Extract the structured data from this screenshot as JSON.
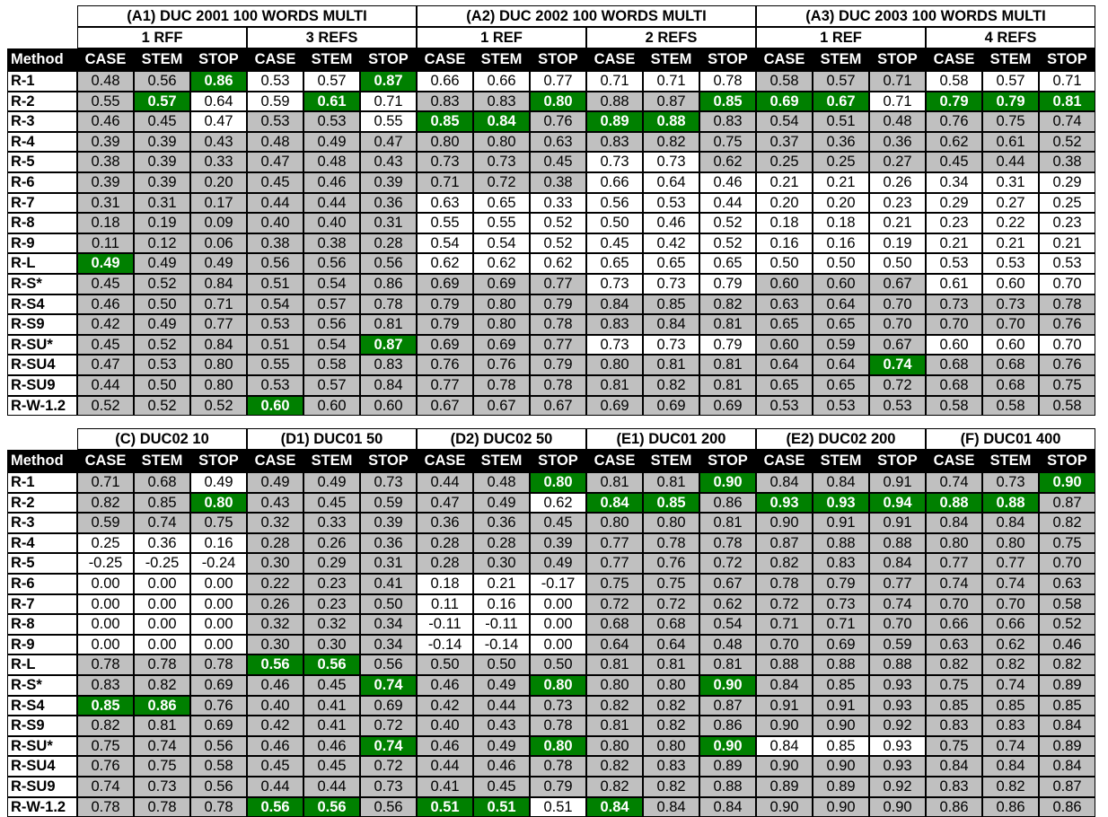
{
  "method_label": "Method",
  "col_labels": [
    "CASE",
    "STEM",
    "STOP"
  ],
  "methods": [
    "R-1",
    "R-2",
    "R-3",
    "R-4",
    "R-5",
    "R-6",
    "R-7",
    "R-8",
    "R-9",
    "R-L",
    "R-S*",
    "R-S4",
    "R-S9",
    "R-SU*",
    "R-SU4",
    "R-SU9",
    "R-W-1.2"
  ],
  "colors": {
    "gray": "#c0c0c0",
    "white": "#ffffff",
    "highlight": "#008000",
    "header_bg": "#000000"
  },
  "top_table": {
    "groups": [
      {
        "label": "(A1) DUC 2001 100 WORDS MULTI",
        "subs": [
          "1 RFF",
          "3 REFS"
        ]
      },
      {
        "label": "(A2) DUC 2002 100 WORDS MULTI",
        "subs": [
          "1 REF",
          "2 REFS"
        ]
      },
      {
        "label": "(A3) DUC 2003 100 WORDS MULTI",
        "subs": [
          "1 REF",
          "4 REFS"
        ]
      }
    ],
    "rows": [
      [
        "0.48",
        "0.56",
        "0.86",
        "0.53",
        "0.57",
        "0.87",
        "0.66",
        "0.66",
        "0.77",
        "0.71",
        "0.71",
        "0.78",
        "0.58",
        "0.57",
        "0.71",
        "0.58",
        "0.57",
        "0.71"
      ],
      [
        "0.55",
        "0.57",
        "0.64",
        "0.59",
        "0.61",
        "0.71",
        "0.83",
        "0.83",
        "0.80",
        "0.88",
        "0.87",
        "0.85",
        "0.69",
        "0.67",
        "0.71",
        "0.79",
        "0.79",
        "0.81"
      ],
      [
        "0.46",
        "0.45",
        "0.47",
        "0.53",
        "0.53",
        "0.55",
        "0.85",
        "0.84",
        "0.76",
        "0.89",
        "0.88",
        "0.83",
        "0.54",
        "0.51",
        "0.48",
        "0.76",
        "0.75",
        "0.74"
      ],
      [
        "0.39",
        "0.39",
        "0.43",
        "0.48",
        "0.49",
        "0.47",
        "0.80",
        "0.80",
        "0.63",
        "0.83",
        "0.82",
        "0.75",
        "0.37",
        "0.36",
        "0.36",
        "0.62",
        "0.61",
        "0.52"
      ],
      [
        "0.38",
        "0.39",
        "0.33",
        "0.47",
        "0.48",
        "0.43",
        "0.73",
        "0.73",
        "0.45",
        "0.73",
        "0.73",
        "0.62",
        "0.25",
        "0.25",
        "0.27",
        "0.45",
        "0.44",
        "0.38"
      ],
      [
        "0.39",
        "0.39",
        "0.20",
        "0.45",
        "0.46",
        "0.39",
        "0.71",
        "0.72",
        "0.38",
        "0.66",
        "0.64",
        "0.46",
        "0.21",
        "0.21",
        "0.26",
        "0.34",
        "0.31",
        "0.29"
      ],
      [
        "0.31",
        "0.31",
        "0.17",
        "0.44",
        "0.44",
        "0.36",
        "0.63",
        "0.65",
        "0.33",
        "0.56",
        "0.53",
        "0.44",
        "0.20",
        "0.20",
        "0.23",
        "0.29",
        "0.27",
        "0.25"
      ],
      [
        "0.18",
        "0.19",
        "0.09",
        "0.40",
        "0.40",
        "0.31",
        "0.55",
        "0.55",
        "0.52",
        "0.50",
        "0.46",
        "0.52",
        "0.18",
        "0.18",
        "0.21",
        "0.23",
        "0.22",
        "0.23"
      ],
      [
        "0.11",
        "0.12",
        "0.06",
        "0.38",
        "0.38",
        "0.28",
        "0.54",
        "0.54",
        "0.52",
        "0.45",
        "0.42",
        "0.52",
        "0.16",
        "0.16",
        "0.19",
        "0.21",
        "0.21",
        "0.21"
      ],
      [
        "0.49",
        "0.49",
        "0.49",
        "0.56",
        "0.56",
        "0.56",
        "0.62",
        "0.62",
        "0.62",
        "0.65",
        "0.65",
        "0.65",
        "0.50",
        "0.50",
        "0.50",
        "0.53",
        "0.53",
        "0.53"
      ],
      [
        "0.45",
        "0.52",
        "0.84",
        "0.51",
        "0.54",
        "0.86",
        "0.69",
        "0.69",
        "0.77",
        "0.73",
        "0.73",
        "0.79",
        "0.60",
        "0.60",
        "0.67",
        "0.61",
        "0.60",
        "0.70"
      ],
      [
        "0.46",
        "0.50",
        "0.71",
        "0.54",
        "0.57",
        "0.78",
        "0.79",
        "0.80",
        "0.79",
        "0.84",
        "0.85",
        "0.82",
        "0.63",
        "0.64",
        "0.70",
        "0.73",
        "0.73",
        "0.78"
      ],
      [
        "0.42",
        "0.49",
        "0.77",
        "0.53",
        "0.56",
        "0.81",
        "0.79",
        "0.80",
        "0.78",
        "0.83",
        "0.84",
        "0.81",
        "0.65",
        "0.65",
        "0.70",
        "0.70",
        "0.70",
        "0.76"
      ],
      [
        "0.45",
        "0.52",
        "0.84",
        "0.51",
        "0.54",
        "0.87",
        "0.69",
        "0.69",
        "0.77",
        "0.73",
        "0.73",
        "0.79",
        "0.60",
        "0.59",
        "0.67",
        "0.60",
        "0.60",
        "0.70"
      ],
      [
        "0.47",
        "0.53",
        "0.80",
        "0.55",
        "0.58",
        "0.83",
        "0.76",
        "0.76",
        "0.79",
        "0.80",
        "0.81",
        "0.81",
        "0.64",
        "0.64",
        "0.74",
        "0.68",
        "0.68",
        "0.76"
      ],
      [
        "0.44",
        "0.50",
        "0.80",
        "0.53",
        "0.57",
        "0.84",
        "0.77",
        "0.78",
        "0.78",
        "0.81",
        "0.82",
        "0.81",
        "0.65",
        "0.65",
        "0.72",
        "0.68",
        "0.68",
        "0.75"
      ],
      [
        "0.52",
        "0.52",
        "0.52",
        "0.60",
        "0.60",
        "0.60",
        "0.67",
        "0.67",
        "0.67",
        "0.69",
        "0.69",
        "0.69",
        "0.53",
        "0.53",
        "0.53",
        "0.58",
        "0.58",
        "0.58"
      ]
    ],
    "shade": [
      "GGHWWHWWWWWWGGGWWW",
      "GHWWHWGGHGGHHHWHHH",
      "GGWGGWHHGHHGGGGGGG",
      "GGGGGGGGGGGGGGGGGG",
      "GGGGGGGGGWWGGGGGGG",
      "GGGGGGGGGWWWWWWWWW",
      "GGGGGGWWWWWWWWWWWW",
      "GGGGGGWWWWWWWWWWWW",
      "GGGGGGWWWWWWWWWWWW",
      "HGGGGGWWWWWWWWWWWW",
      "GGGGGGGGGWWWGGGWWW",
      "GGGGGGGGGGGGGGGGGG",
      "GGGGGGGGGGGGGGGGGG",
      "GGGGGHGGGWWWGGGWWW",
      "GGGGGGGGGGGGGGHGGG",
      "GGGGGGGGGGGGGGGGGG",
      "GGGHGGGGGGGGGGGGGG"
    ]
  },
  "bottom_table": {
    "groups": [
      {
        "label": "(C) DUC02 10"
      },
      {
        "label": "(D1) DUC01 50"
      },
      {
        "label": "(D2) DUC02 50"
      },
      {
        "label": "(E1) DUC01 200"
      },
      {
        "label": "(E2) DUC02 200"
      },
      {
        "label": "(F) DUC01 400"
      }
    ],
    "rows": [
      [
        "0.71",
        "0.68",
        "0.49",
        "0.49",
        "0.49",
        "0.73",
        "0.44",
        "0.48",
        "0.80",
        "0.81",
        "0.81",
        "0.90",
        "0.84",
        "0.84",
        "0.91",
        "0.74",
        "0.73",
        "0.90"
      ],
      [
        "0.82",
        "0.85",
        "0.80",
        "0.43",
        "0.45",
        "0.59",
        "0.47",
        "0.49",
        "0.62",
        "0.84",
        "0.85",
        "0.86",
        "0.93",
        "0.93",
        "0.94",
        "0.88",
        "0.88",
        "0.87"
      ],
      [
        "0.59",
        "0.74",
        "0.75",
        "0.32",
        "0.33",
        "0.39",
        "0.36",
        "0.36",
        "0.45",
        "0.80",
        "0.80",
        "0.81",
        "0.90",
        "0.91",
        "0.91",
        "0.84",
        "0.84",
        "0.82"
      ],
      [
        "0.25",
        "0.36",
        "0.16",
        "0.28",
        "0.26",
        "0.36",
        "0.28",
        "0.28",
        "0.39",
        "0.77",
        "0.78",
        "0.78",
        "0.87",
        "0.88",
        "0.88",
        "0.80",
        "0.80",
        "0.75"
      ],
      [
        "-0.25",
        "-0.25",
        "-0.24",
        "0.30",
        "0.29",
        "0.31",
        "0.28",
        "0.30",
        "0.49",
        "0.77",
        "0.76",
        "0.72",
        "0.82",
        "0.83",
        "0.84",
        "0.77",
        "0.77",
        "0.70"
      ],
      [
        "0.00",
        "0.00",
        "0.00",
        "0.22",
        "0.23",
        "0.41",
        "0.18",
        "0.21",
        "-0.17",
        "0.75",
        "0.75",
        "0.67",
        "0.78",
        "0.79",
        "0.77",
        "0.74",
        "0.74",
        "0.63"
      ],
      [
        "0.00",
        "0.00",
        "0.00",
        "0.26",
        "0.23",
        "0.50",
        "0.11",
        "0.16",
        "0.00",
        "0.72",
        "0.72",
        "0.62",
        "0.72",
        "0.73",
        "0.74",
        "0.70",
        "0.70",
        "0.58"
      ],
      [
        "0.00",
        "0.00",
        "0.00",
        "0.32",
        "0.32",
        "0.34",
        "-0.11",
        "-0.11",
        "0.00",
        "0.68",
        "0.68",
        "0.54",
        "0.71",
        "0.71",
        "0.70",
        "0.66",
        "0.66",
        "0.52"
      ],
      [
        "0.00",
        "0.00",
        "0.00",
        "0.30",
        "0.30",
        "0.34",
        "-0.14",
        "-0.14",
        "0.00",
        "0.64",
        "0.64",
        "0.48",
        "0.70",
        "0.69",
        "0.59",
        "0.63",
        "0.62",
        "0.46"
      ],
      [
        "0.78",
        "0.78",
        "0.78",
        "0.56",
        "0.56",
        "0.56",
        "0.50",
        "0.50",
        "0.50",
        "0.81",
        "0.81",
        "0.81",
        "0.88",
        "0.88",
        "0.88",
        "0.82",
        "0.82",
        "0.82"
      ],
      [
        "0.83",
        "0.82",
        "0.69",
        "0.46",
        "0.45",
        "0.74",
        "0.46",
        "0.49",
        "0.80",
        "0.80",
        "0.80",
        "0.90",
        "0.84",
        "0.85",
        "0.93",
        "0.75",
        "0.74",
        "0.89"
      ],
      [
        "0.85",
        "0.86",
        "0.76",
        "0.40",
        "0.41",
        "0.69",
        "0.42",
        "0.44",
        "0.73",
        "0.82",
        "0.82",
        "0.87",
        "0.91",
        "0.91",
        "0.93",
        "0.85",
        "0.85",
        "0.85"
      ],
      [
        "0.82",
        "0.81",
        "0.69",
        "0.42",
        "0.41",
        "0.72",
        "0.40",
        "0.43",
        "0.78",
        "0.81",
        "0.82",
        "0.86",
        "0.90",
        "0.90",
        "0.92",
        "0.83",
        "0.83",
        "0.84"
      ],
      [
        "0.75",
        "0.74",
        "0.56",
        "0.46",
        "0.46",
        "0.74",
        "0.46",
        "0.49",
        "0.80",
        "0.80",
        "0.80",
        "0.90",
        "0.84",
        "0.85",
        "0.93",
        "0.75",
        "0.74",
        "0.89"
      ],
      [
        "0.76",
        "0.75",
        "0.58",
        "0.45",
        "0.45",
        "0.72",
        "0.44",
        "0.46",
        "0.78",
        "0.82",
        "0.83",
        "0.89",
        "0.90",
        "0.90",
        "0.93",
        "0.84",
        "0.84",
        "0.84"
      ],
      [
        "0.74",
        "0.73",
        "0.56",
        "0.44",
        "0.44",
        "0.73",
        "0.41",
        "0.45",
        "0.79",
        "0.82",
        "0.82",
        "0.88",
        "0.89",
        "0.89",
        "0.92",
        "0.83",
        "0.82",
        "0.87"
      ],
      [
        "0.78",
        "0.78",
        "0.78",
        "0.56",
        "0.56",
        "0.56",
        "0.51",
        "0.51",
        "0.51",
        "0.84",
        "0.84",
        "0.84",
        "0.90",
        "0.90",
        "0.90",
        "0.86",
        "0.86",
        "0.86"
      ]
    ],
    "shade": [
      "GGWGGGGGHGGHGGGGGH",
      "GGHGGGGGWHHGHHHHHG",
      "GGGGGGGGGGGGGGGGGG",
      "WWWGGGGGGGGGGGGGGG",
      "WWWGGGGGGGGGGGGGGG",
      "WWWGGGWWWGGGGGGGGG",
      "WWWGGGWWWGGGGGGGGG",
      "WWWGGGWWWGGGGGGGGG",
      "WWWGGGWWWGGGGGGGGG",
      "GGGHHGGGGGGGGGGGGG",
      "GGGGGHGGHGGHGGGGGG",
      "HHGGGGGGGGGGGGGGGG",
      "GGGGGGGGGGGGGGGGGG",
      "GGGGGHGGHGGHWWWGGG",
      "GGGGGGGGGGGGGGGGGG",
      "GGGGGGGGGGGGGGGGGG",
      "GGGHHGHHWHGGGGGGGG"
    ]
  }
}
